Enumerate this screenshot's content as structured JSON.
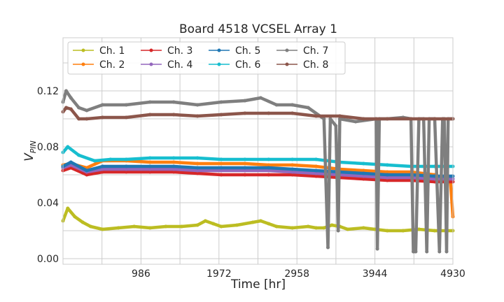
{
  "chart_data": {
    "type": "line",
    "title": "Board 4518 VCSEL Array 1",
    "xlabel": "Time [hr]",
    "ylabel_main": "V",
    "ylabel_sub": "PIN",
    "xlim": [
      0,
      4930
    ],
    "ylim": [
      -0.004,
      0.158
    ],
    "xticks": [
      986,
      1972,
      2958,
      3944,
      4930
    ],
    "xtick_labels": [
      "986",
      "1972",
      "2958",
      "3944",
      "4930"
    ],
    "yticks": [
      0.0,
      0.04,
      0.08,
      0.12
    ],
    "ytick_labels": [
      "0.00",
      "0.04",
      "0.08",
      "0.12"
    ],
    "grid": true,
    "legend_position": "top-left",
    "series": [
      {
        "name": "Ch. 1",
        "color": "#bcbd22",
        "x": [
          0,
          60,
          150,
          250,
          350,
          500,
          700,
          900,
          1100,
          1300,
          1500,
          1700,
          1800,
          1900,
          2000,
          2200,
          2400,
          2500,
          2600,
          2700,
          2900,
          3100,
          3200,
          3300,
          3400,
          3500,
          3600,
          3800,
          3944,
          4100,
          4300,
          4500,
          4700,
          4930
        ],
        "y": [
          0.027,
          0.036,
          0.03,
          0.026,
          0.023,
          0.021,
          0.022,
          0.023,
          0.022,
          0.023,
          0.023,
          0.024,
          0.027,
          0.025,
          0.023,
          0.024,
          0.026,
          0.027,
          0.025,
          0.023,
          0.022,
          0.023,
          0.022,
          0.022,
          0.024,
          0.023,
          0.021,
          0.022,
          0.021,
          0.02,
          0.02,
          0.021,
          0.02,
          0.02
        ]
      },
      {
        "name": "Ch. 2",
        "color": "#ff7f0e",
        "x": [
          0,
          100,
          300,
          500,
          800,
          1100,
          1400,
          1700,
          2000,
          2300,
          2600,
          2900,
          3200,
          3500,
          3800,
          4100,
          4400,
          4700,
          4900,
          4930
        ],
        "y": [
          0.067,
          0.068,
          0.065,
          0.07,
          0.07,
          0.069,
          0.069,
          0.068,
          0.068,
          0.068,
          0.067,
          0.067,
          0.066,
          0.064,
          0.063,
          0.062,
          0.062,
          0.06,
          0.055,
          0.03
        ]
      },
      {
        "name": "Ch. 3",
        "color": "#d62728",
        "x": [
          0,
          100,
          300,
          500,
          800,
          1100,
          1400,
          1700,
          2000,
          2300,
          2600,
          2900,
          3200,
          3500,
          3800,
          4100,
          4400,
          4700,
          4930
        ],
        "y": [
          0.063,
          0.065,
          0.06,
          0.062,
          0.062,
          0.062,
          0.062,
          0.061,
          0.06,
          0.06,
          0.06,
          0.06,
          0.059,
          0.058,
          0.057,
          0.056,
          0.056,
          0.055,
          0.055
        ]
      },
      {
        "name": "Ch. 4",
        "color": "#9467bd",
        "x": [
          0,
          100,
          300,
          500,
          800,
          1100,
          1400,
          1700,
          2000,
          2300,
          2600,
          2900,
          3200,
          3500,
          3800,
          4100,
          4400,
          4700,
          4930
        ],
        "y": [
          0.065,
          0.067,
          0.062,
          0.064,
          0.064,
          0.064,
          0.064,
          0.063,
          0.063,
          0.063,
          0.063,
          0.062,
          0.061,
          0.06,
          0.059,
          0.058,
          0.058,
          0.057,
          0.057
        ]
      },
      {
        "name": "Ch. 5",
        "color": "#1f77b4",
        "x": [
          0,
          100,
          300,
          500,
          800,
          1100,
          1400,
          1700,
          2000,
          2300,
          2600,
          2900,
          3200,
          3500,
          3800,
          4100,
          4400,
          4700,
          4930
        ],
        "y": [
          0.066,
          0.069,
          0.063,
          0.066,
          0.066,
          0.066,
          0.066,
          0.065,
          0.065,
          0.065,
          0.065,
          0.064,
          0.063,
          0.062,
          0.061,
          0.06,
          0.06,
          0.059,
          0.059
        ]
      },
      {
        "name": "Ch. 6",
        "color": "#17becf",
        "x": [
          0,
          60,
          200,
          400,
          600,
          800,
          1100,
          1400,
          1700,
          2000,
          2300,
          2600,
          2900,
          3200,
          3500,
          3800,
          4100,
          4400,
          4700,
          4930
        ],
        "y": [
          0.076,
          0.08,
          0.074,
          0.07,
          0.071,
          0.071,
          0.072,
          0.072,
          0.072,
          0.071,
          0.071,
          0.071,
          0.071,
          0.071,
          0.069,
          0.068,
          0.067,
          0.066,
          0.066,
          0.066
        ]
      },
      {
        "name": "Ch. 7",
        "color": "#7f7f7f",
        "x": [
          0,
          40,
          100,
          200,
          300,
          500,
          800,
          1100,
          1400,
          1700,
          2000,
          2300,
          2500,
          2700,
          2900,
          3100,
          3300,
          3350,
          3380,
          3450,
          3480,
          3500,
          3700,
          3960,
          3975,
          4000,
          4100,
          4300,
          4400,
          4430,
          4460,
          4500,
          4560,
          4600,
          4630,
          4700,
          4760,
          4800,
          4820,
          4850,
          4870,
          4930
        ],
        "y": [
          0.112,
          0.12,
          0.115,
          0.108,
          0.106,
          0.11,
          0.11,
          0.112,
          0.112,
          0.11,
          0.112,
          0.113,
          0.115,
          0.11,
          0.11,
          0.108,
          0.1,
          0.008,
          0.1,
          0.095,
          0.02,
          0.1,
          0.098,
          0.1,
          0.007,
          0.1,
          0.1,
          0.101,
          0.1,
          0.005,
          0.005,
          0.1,
          0.1,
          0.005,
          0.1,
          0.1,
          0.005,
          0.1,
          0.1,
          0.005,
          0.1,
          0.1
        ]
      },
      {
        "name": "Ch. 8",
        "color": "#8c564b",
        "x": [
          0,
          40,
          100,
          200,
          300,
          500,
          800,
          1100,
          1400,
          1700,
          2000,
          2300,
          2600,
          2900,
          3200,
          3500,
          3800,
          4100,
          4400,
          4700,
          4930
        ],
        "y": [
          0.105,
          0.108,
          0.107,
          0.1,
          0.1,
          0.101,
          0.101,
          0.103,
          0.103,
          0.102,
          0.103,
          0.104,
          0.104,
          0.104,
          0.102,
          0.102,
          0.1,
          0.1,
          0.1,
          0.1,
          0.1
        ]
      }
    ]
  }
}
